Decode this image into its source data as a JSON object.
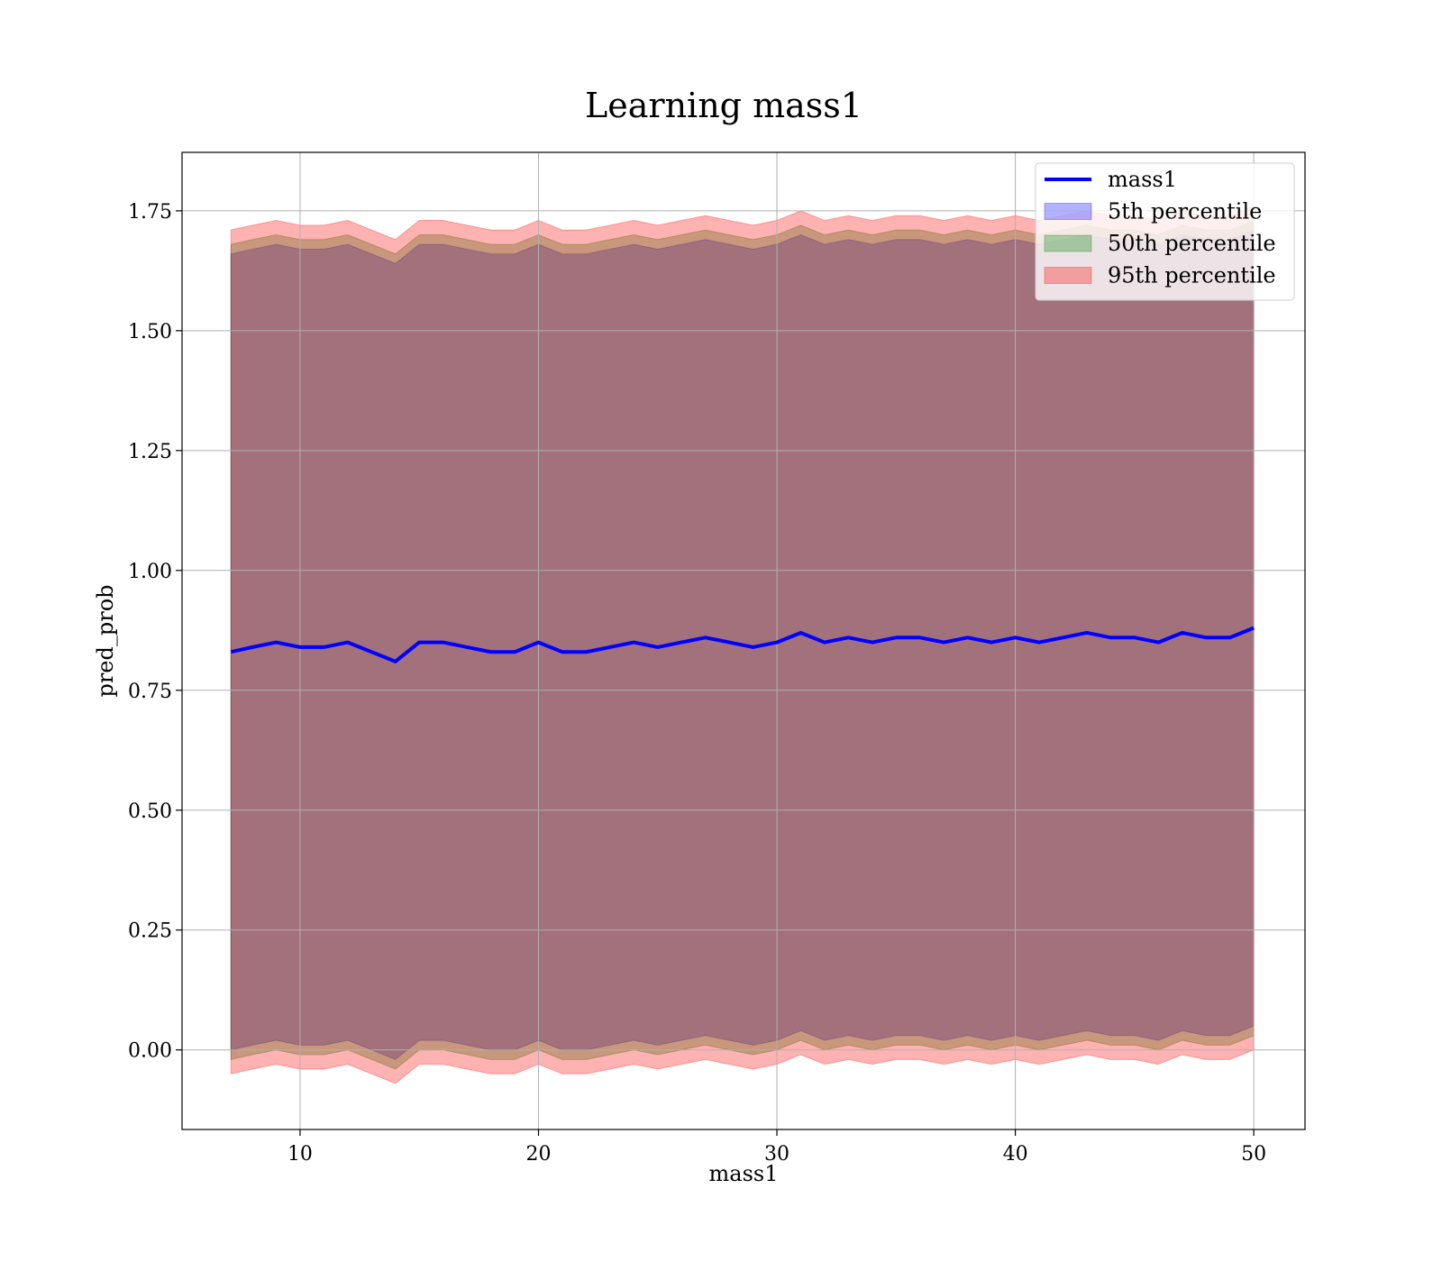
{
  "chart_data": {
    "type": "line",
    "title": "Learning mass1",
    "x_label": "mass1",
    "y_label": "pred_prob",
    "x": [
      7.1,
      8,
      9,
      10,
      11,
      12,
      13,
      14,
      15,
      16,
      17,
      18,
      19,
      20,
      21,
      22,
      23,
      24,
      25,
      26,
      27,
      28,
      29,
      30,
      31,
      32,
      33,
      34,
      35,
      36,
      37,
      38,
      39,
      40,
      41,
      42,
      43,
      44,
      45,
      46,
      47,
      48,
      49,
      50
    ],
    "series": [
      {
        "name": "mass1",
        "color": "#0000ff",
        "values": [
          0.83,
          0.84,
          0.85,
          0.84,
          0.84,
          0.85,
          0.83,
          0.81,
          0.85,
          0.85,
          0.84,
          0.83,
          0.83,
          0.85,
          0.83,
          0.83,
          0.84,
          0.85,
          0.84,
          0.85,
          0.86,
          0.85,
          0.84,
          0.85,
          0.87,
          0.85,
          0.86,
          0.85,
          0.86,
          0.86,
          0.85,
          0.86,
          0.85,
          0.86,
          0.85,
          0.86,
          0.87,
          0.86,
          0.86,
          0.85,
          0.87,
          0.86,
          0.86,
          0.88
        ]
      }
    ],
    "bands": [
      {
        "name": "5th percentile",
        "color": "#0000ff",
        "lower": [
          0,
          0.01,
          0.02,
          0.01,
          0.01,
          0.02,
          0,
          -0.02,
          0.02,
          0.02,
          0.01,
          0,
          0,
          0.02,
          0,
          0,
          0.01,
          0.02,
          0.01,
          0.02,
          0.03,
          0.02,
          0.01,
          0.02,
          0.04,
          0.02,
          0.03,
          0.02,
          0.03,
          0.03,
          0.02,
          0.03,
          0.02,
          0.03,
          0.02,
          0.03,
          0.04,
          0.03,
          0.03,
          0.02,
          0.04,
          0.03,
          0.03,
          0.05
        ],
        "upper": [
          1.66,
          1.67,
          1.68,
          1.67,
          1.67,
          1.68,
          1.66,
          1.64,
          1.68,
          1.68,
          1.67,
          1.66,
          1.66,
          1.68,
          1.66,
          1.66,
          1.67,
          1.68,
          1.67,
          1.68,
          1.69,
          1.68,
          1.67,
          1.68,
          1.7,
          1.68,
          1.69,
          1.68,
          1.69,
          1.69,
          1.68,
          1.69,
          1.68,
          1.69,
          1.68,
          1.69,
          1.7,
          1.69,
          1.69,
          1.68,
          1.7,
          1.69,
          1.69,
          1.71
        ]
      },
      {
        "name": "50th percentile",
        "color": "#008000",
        "lower": [
          -0.02,
          -0.01,
          0,
          -0.01,
          -0.01,
          0,
          -0.02,
          -0.04,
          0,
          0,
          -0.01,
          -0.02,
          -0.02,
          0,
          -0.02,
          -0.02,
          -0.01,
          0,
          -0.01,
          0,
          0.01,
          0,
          -0.01,
          0,
          0.02,
          0,
          0.01,
          0,
          0.01,
          0.01,
          0,
          0.01,
          0,
          0.01,
          0,
          0.01,
          0.02,
          0.01,
          0.01,
          0,
          0.02,
          0.01,
          0.01,
          0.03
        ],
        "upper": [
          1.68,
          1.69,
          1.7,
          1.69,
          1.69,
          1.7,
          1.68,
          1.66,
          1.7,
          1.7,
          1.69,
          1.68,
          1.68,
          1.7,
          1.68,
          1.68,
          1.69,
          1.7,
          1.69,
          1.7,
          1.71,
          1.7,
          1.69,
          1.7,
          1.72,
          1.7,
          1.71,
          1.7,
          1.71,
          1.71,
          1.7,
          1.71,
          1.7,
          1.71,
          1.7,
          1.71,
          1.72,
          1.71,
          1.71,
          1.7,
          1.72,
          1.71,
          1.71,
          1.73
        ]
      },
      {
        "name": "95th percentile",
        "color": "#ff0000",
        "lower": [
          -0.05,
          -0.04,
          -0.03,
          -0.04,
          -0.04,
          -0.03,
          -0.05,
          -0.07,
          -0.03,
          -0.03,
          -0.04,
          -0.05,
          -0.05,
          -0.03,
          -0.05,
          -0.05,
          -0.04,
          -0.03,
          -0.04,
          -0.03,
          -0.02,
          -0.03,
          -0.04,
          -0.03,
          -0.01,
          -0.03,
          -0.02,
          -0.03,
          -0.02,
          -0.02,
          -0.03,
          -0.02,
          -0.03,
          -0.02,
          -0.03,
          -0.02,
          -0.01,
          -0.02,
          -0.02,
          -0.03,
          -0.01,
          -0.02,
          -0.02,
          0
        ],
        "upper": [
          1.71,
          1.72,
          1.73,
          1.72,
          1.72,
          1.73,
          1.71,
          1.69,
          1.73,
          1.73,
          1.72,
          1.71,
          1.71,
          1.73,
          1.71,
          1.71,
          1.72,
          1.73,
          1.72,
          1.73,
          1.74,
          1.73,
          1.72,
          1.73,
          1.75,
          1.73,
          1.74,
          1.73,
          1.74,
          1.74,
          1.73,
          1.74,
          1.73,
          1.74,
          1.73,
          1.74,
          1.75,
          1.74,
          1.74,
          1.73,
          1.75,
          1.74,
          1.74,
          1.76
        ]
      }
    ],
    "band_opacity": 0.3,
    "xlim": [
      5.05,
      52.15
    ],
    "ylim": [
      -0.166,
      1.872
    ],
    "xticks": [
      10,
      20,
      30,
      40,
      50
    ],
    "yticks": [
      {
        "value": 0,
        "label": "0.00"
      },
      0.25,
      {
        "value": 0.5,
        "label": "0.50"
      },
      0.75,
      {
        "value": 1,
        "label": "1.00"
      },
      1.25,
      {
        "value": 1.5,
        "label": "1.50"
      },
      1.75
    ],
    "grid": true,
    "legend": "upper right"
  }
}
